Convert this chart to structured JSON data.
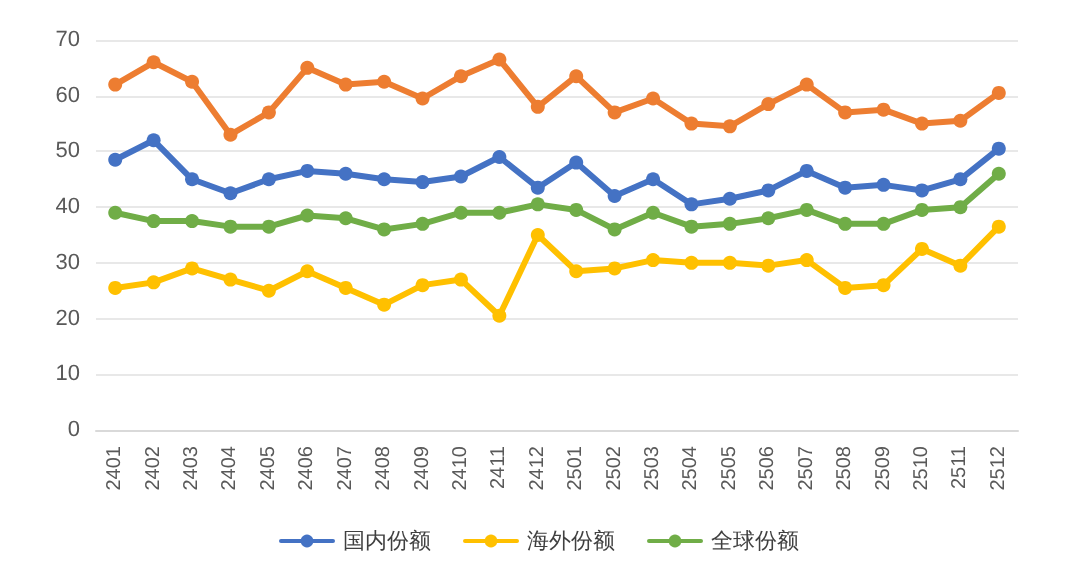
{
  "chart_data": {
    "type": "line",
    "categories": [
      "2401",
      "2402",
      "2403",
      "2404",
      "2405",
      "2406",
      "2407",
      "2408",
      "2409",
      "2410",
      "2411",
      "2412",
      "2501",
      "2502",
      "2503",
      "2504",
      "2505",
      "2506",
      "2507",
      "2508",
      "2509",
      "2510",
      "2511",
      "2512"
    ],
    "series": [
      {
        "name": "国内份额",
        "color": "#4472c4",
        "values": [
          48.5,
          52,
          45,
          42.5,
          45,
          46.5,
          46,
          45,
          44.5,
          45.5,
          49,
          43.5,
          48,
          42,
          45,
          40.5,
          41.5,
          43,
          46.5,
          43.5,
          44,
          43,
          45,
          50.5
        ]
      },
      {
        "color": "#ed7d31",
        "values": [
          62,
          66,
          62.5,
          53,
          57,
          65,
          62,
          62.5,
          59.5,
          63.5,
          66.5,
          58,
          63.5,
          57,
          59.5,
          55,
          54.5,
          58.5,
          62,
          57,
          57.5,
          55,
          55.5,
          60.5
        ]
      },
      {
        "name": "海外份额",
        "color": "#ffc000",
        "values": [
          25.5,
          26.5,
          29,
          27,
          25,
          28.5,
          25.5,
          22.5,
          26,
          27,
          20.5,
          35,
          28.5,
          29,
          30.5,
          30,
          30,
          29.5,
          30.5,
          25.5,
          26,
          32.5,
          29.5,
          36.5
        ]
      },
      {
        "name": "全球份额",
        "color": "#70ad47",
        "values": [
          39,
          37.5,
          37.5,
          36.5,
          36.5,
          38.5,
          38,
          36,
          37,
          39,
          39,
          40.5,
          39.5,
          36,
          39,
          36.5,
          37,
          38,
          39.5,
          37,
          37,
          39.5,
          40,
          46
        ]
      }
    ],
    "ylim": [
      0,
      70
    ],
    "yticks": [
      0,
      10,
      20,
      30,
      40,
      50,
      60,
      70
    ],
    "grid": "y",
    "legend": "bottom",
    "marker": "circle",
    "line_style": "solid"
  }
}
